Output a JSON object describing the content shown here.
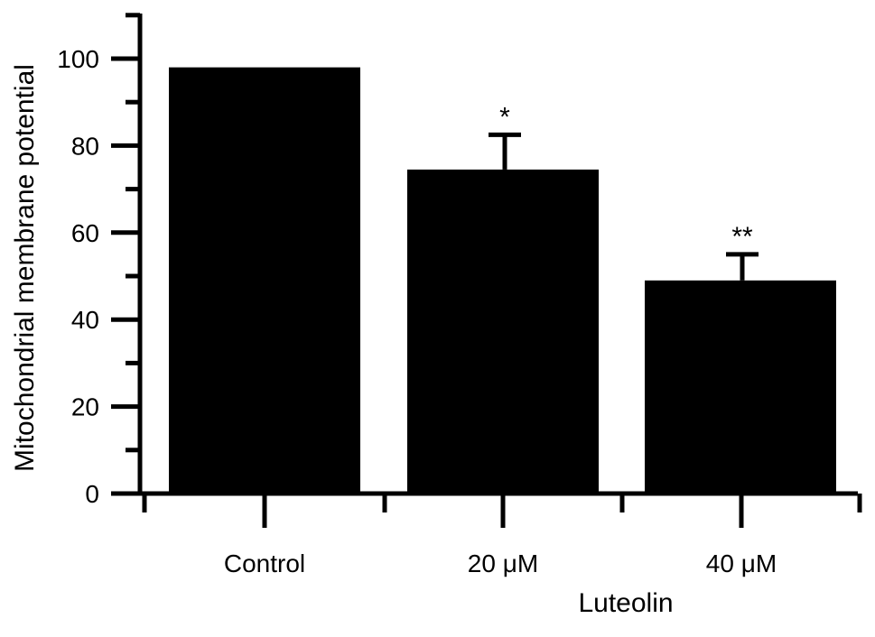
{
  "chart_data": {
    "type": "bar",
    "categories": [
      "Control",
      "20 μM",
      "40 μM"
    ],
    "values": [
      98,
      74.5,
      49
    ],
    "errors": [
      0,
      8,
      6
    ],
    "annotations": [
      "",
      "*",
      "**"
    ],
    "xlabel": "Luteolin",
    "ylabel": "Mitochondrial membrane potential",
    "ylim": [
      0,
      110
    ],
    "yticks": [
      0,
      20,
      40,
      60,
      80,
      100
    ],
    "bar_color": "#000000",
    "grid": false
  }
}
